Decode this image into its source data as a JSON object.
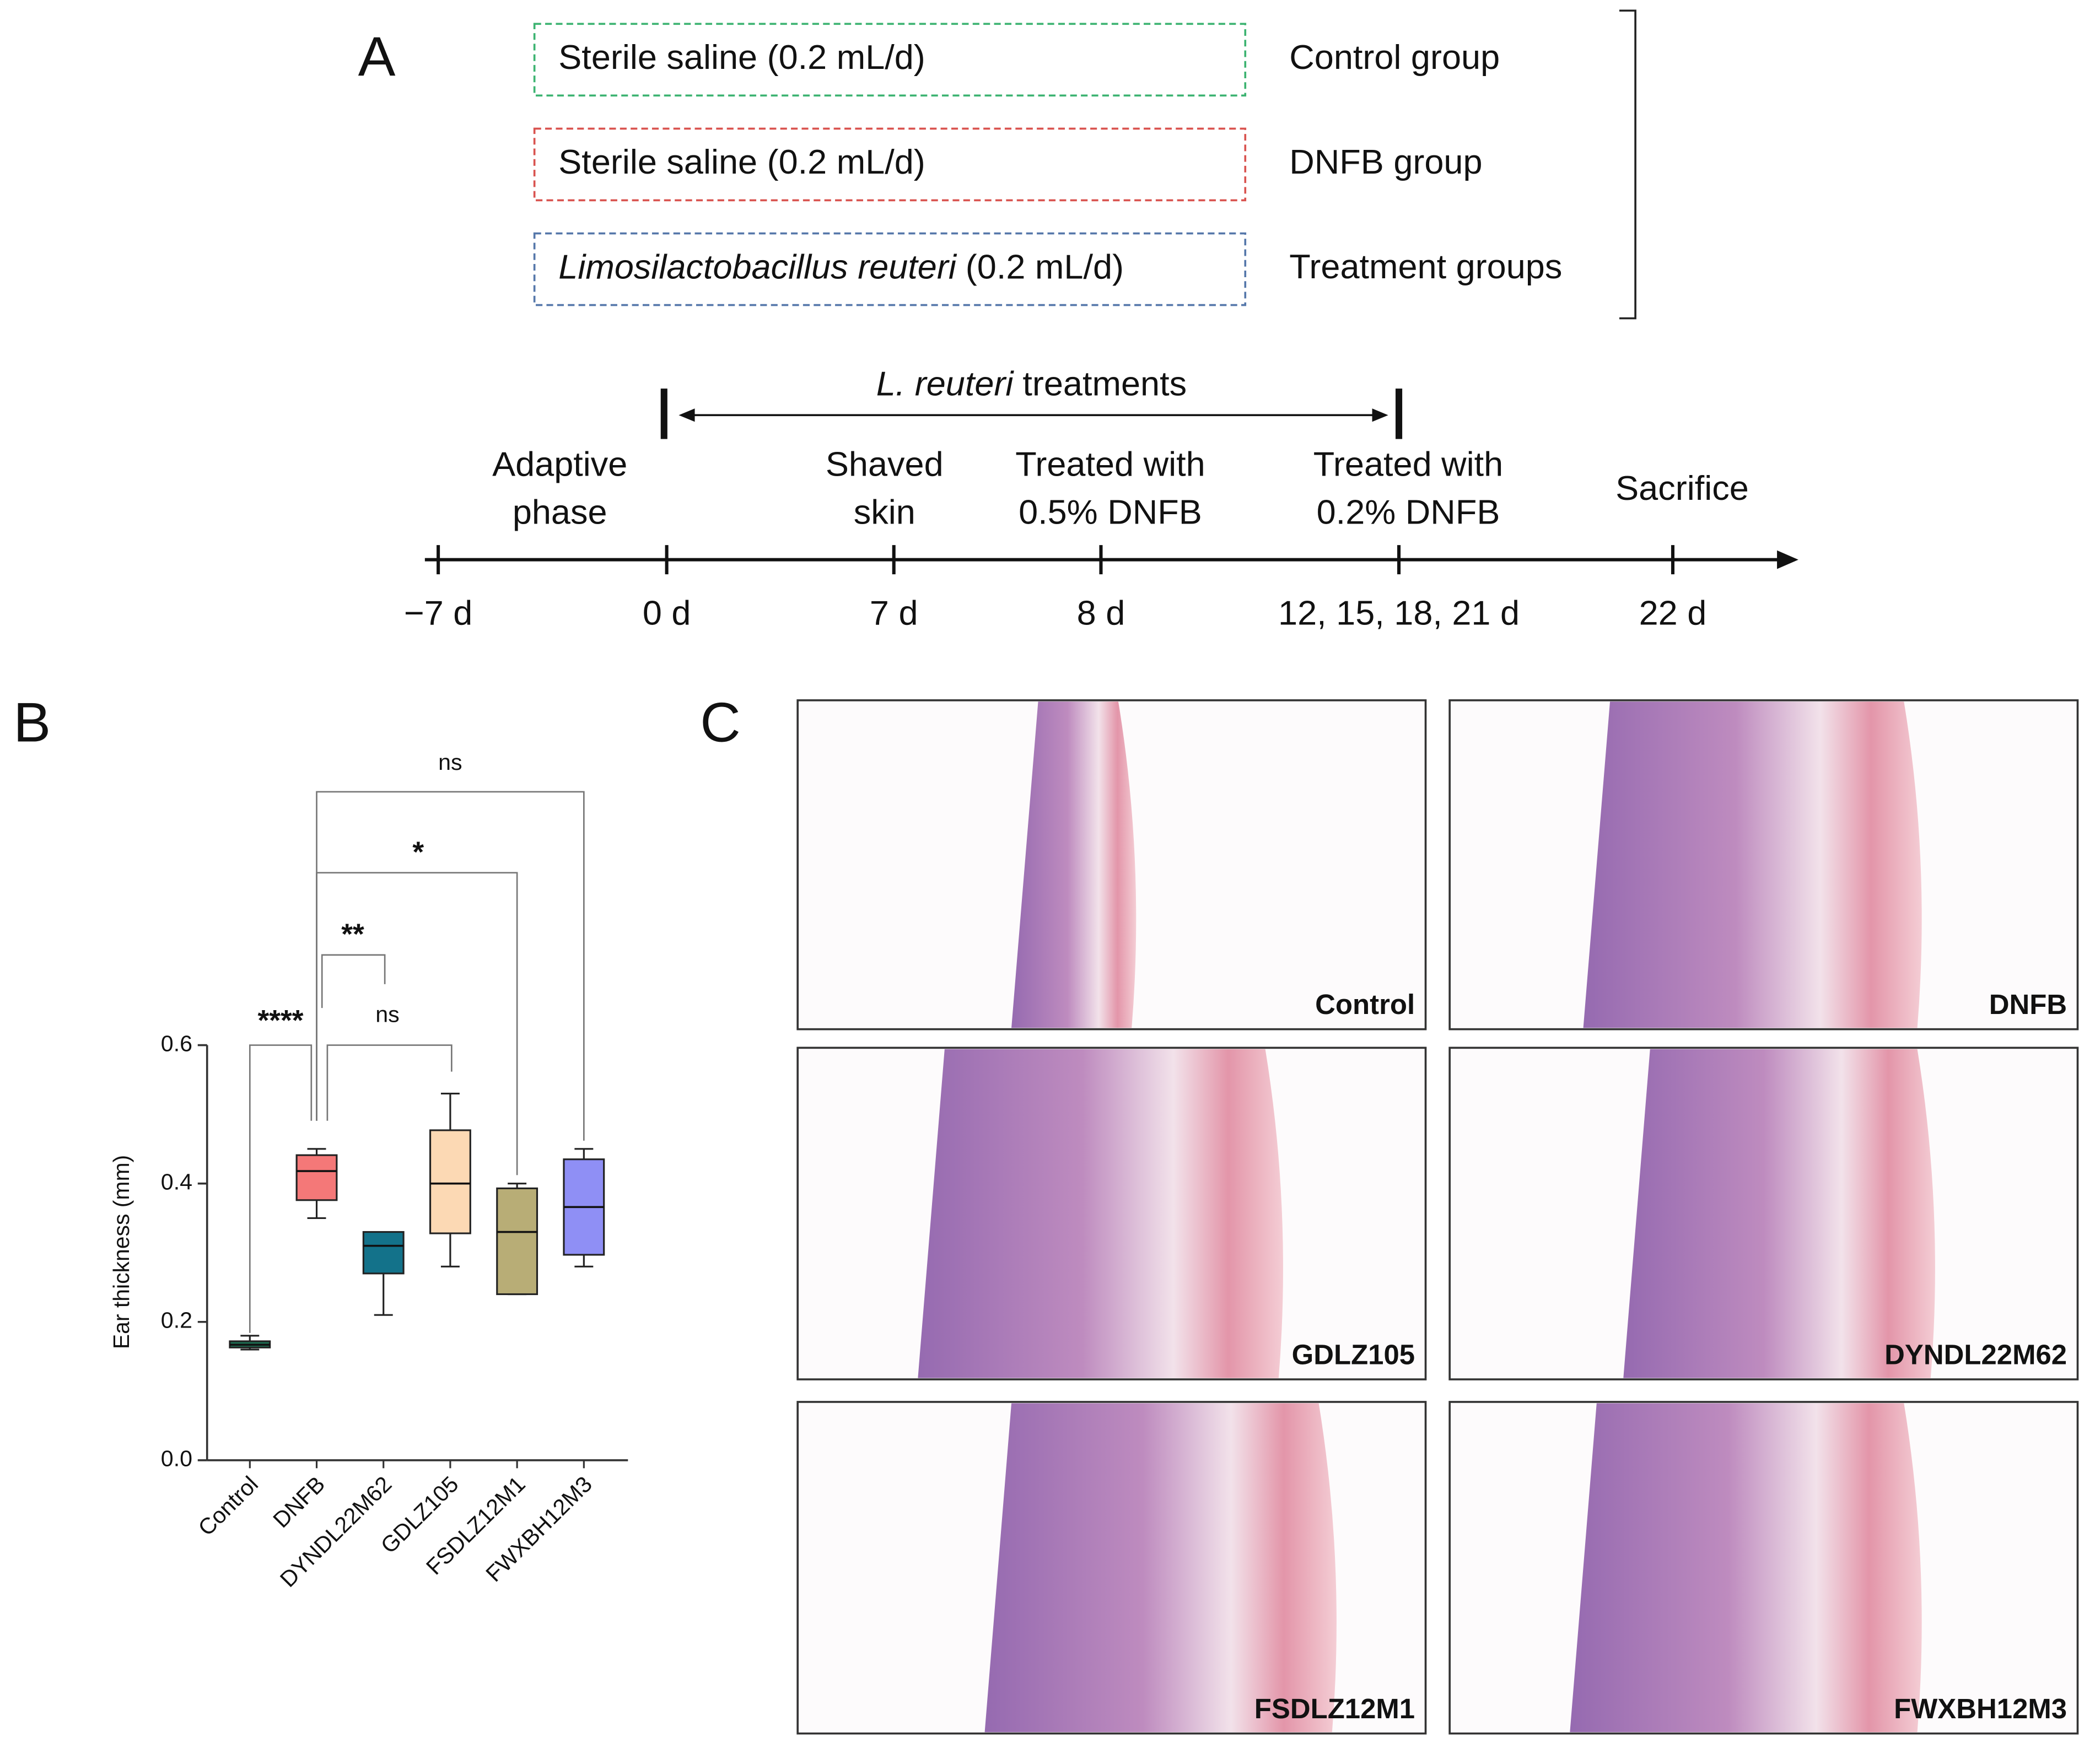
{
  "panel_a": {
    "label": "A",
    "groups": [
      {
        "treatment": "Sterile saline (0.2 mL/d)",
        "group": "Control group",
        "color": "#3cb371"
      },
      {
        "treatment": "Sterile saline (0.2 mL/d)",
        "group": "DNFB group",
        "color": "#d9534f"
      },
      {
        "treatment_italic": "Limosilactobacillus reuteri",
        "treatment": "(0.2 mL/d)",
        "group": "Treatment groups",
        "color": "#5577aa"
      }
    ],
    "treatment_label": {
      "italic": "L. reuteri",
      "text": "treatments"
    },
    "timepoints": [
      {
        "day": "−7 d",
        "event": []
      },
      {
        "day": "0 d",
        "event": []
      },
      {
        "day": "7 d",
        "event": [
          "Shaved",
          "skin"
        ]
      },
      {
        "day": "8 d",
        "event": [
          "Treated with",
          "0.5% DNFB"
        ]
      },
      {
        "day": "12, 15, 18, 21 d",
        "event": [
          "Treated with",
          "0.2% DNFB"
        ]
      },
      {
        "day": "22 d",
        "event": [
          "Sacrifice"
        ]
      }
    ],
    "phase": [
      "Adaptive",
      "phase"
    ]
  },
  "chart_data": {
    "type": "box",
    "panel_label": "B",
    "y_label": "Ear thickness (mm)",
    "categories": [
      "Control",
      "DNFB",
      "DYNDL22M62",
      "GDLZ105",
      "FSDLZ12M1",
      "FWXBH12M3"
    ],
    "colors": [
      "#1d6e52",
      "#f47878",
      "#13728a",
      "#fcd9b4",
      "#b8ad76",
      "#8f8ff5"
    ],
    "min": [
      0.16,
      0.35,
      0.21,
      0.28,
      0.24,
      0.28
    ],
    "q1": [
      0.163,
      0.376,
      0.27,
      0.328,
      0.24,
      0.297
    ],
    "median": [
      0.167,
      0.418,
      0.31,
      0.4,
      0.33,
      0.366
    ],
    "q3": [
      0.172,
      0.441,
      0.33,
      0.477,
      0.393,
      0.435
    ],
    "max": [
      0.18,
      0.45,
      0.33,
      0.53,
      0.4,
      0.45
    ],
    "ylim": [
      0,
      0.6
    ],
    "yticks": [
      {
        "value": 0,
        "label": "0.0"
      },
      {
        "value": 0.2,
        "label": "0.2"
      },
      {
        "value": 0.4,
        "label": "0.4"
      },
      {
        "value": 0.6,
        "label": "0.6"
      }
    ],
    "significance": [
      "****",
      "**",
      "ns",
      "*",
      "ns"
    ]
  },
  "panel_c": {
    "label": "C",
    "images": [
      "Control",
      "DNFB",
      "GDLZ105",
      "DYNDL22M62",
      "FSDLZ12M1",
      "FWXBH12M3"
    ]
  }
}
